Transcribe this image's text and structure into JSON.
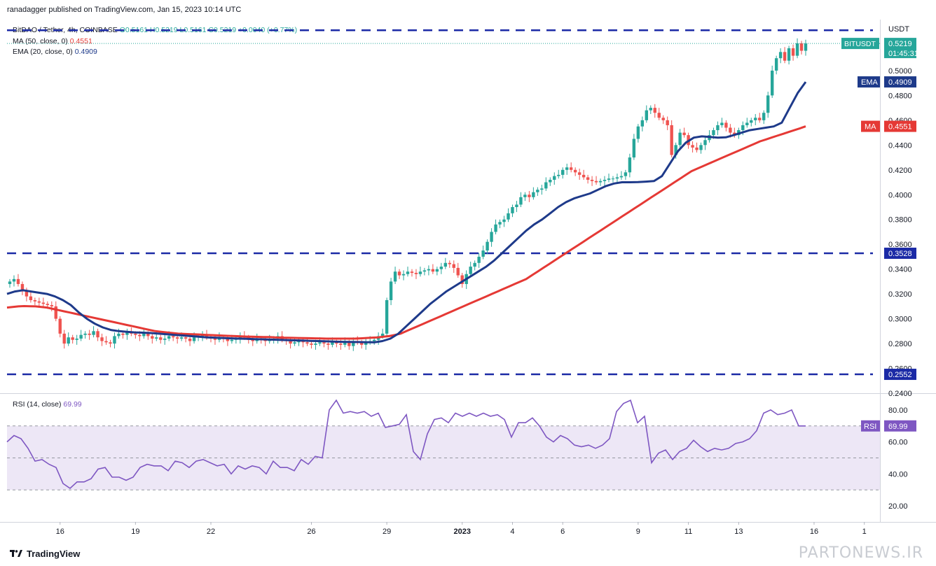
{
  "header": {
    "publisher": "ranadagger published on TradingView.com, Jan 15, 2023 10:14 UTC"
  },
  "legend": {
    "symbol": "BitDAO / Tether, 4h, COINBASE",
    "ohlc": "O0.5161 H0.5219 L0.5161 C0.5219 +0.0040 (+0.77%)",
    "ma_label": "MA (50, close, 0)",
    "ma_value": "0.4551",
    "ema_label": "EMA (20, close, 0)",
    "ema_value": "0.4909"
  },
  "rsi_legend": {
    "label": "RSI (14, close)",
    "value": "69.99"
  },
  "footer": {
    "brand": "TradingView"
  },
  "watermark": "PARTONEWS.IR",
  "colors": {
    "up": "#26a69a",
    "down": "#ef5350",
    "ma": "#e53935",
    "ema": "#1e3a8a",
    "rsi": "#7e57c2",
    "dashed_level": "#1b2aa6",
    "rsi_band": "#ede7f6"
  },
  "chart_data": [
    {
      "type": "candlestick",
      "title": "BitDAO / Tether, 4h, COINBASE",
      "ylabel": "USDT",
      "ylim": [
        0.24,
        0.54
      ],
      "y_ticks": [
        "0.5000",
        "0.4800",
        "0.4600",
        "0.4400",
        "0.4200",
        "0.4000",
        "0.3800",
        "0.3600",
        "0.3400",
        "0.3200",
        "0.3000",
        "0.2800",
        "0.2600",
        "0.2400"
      ],
      "x_ticks": [
        {
          "label": "16",
          "i": 12
        },
        {
          "label": "19",
          "i": 30
        },
        {
          "label": "22",
          "i": 48
        },
        {
          "label": "26",
          "i": 72
        },
        {
          "label": "29",
          "i": 90
        },
        {
          "label": "2023",
          "i": 108
        },
        {
          "label": "4",
          "i": 120
        },
        {
          "label": "6",
          "i": 132
        },
        {
          "label": "9",
          "i": 150
        },
        {
          "label": "11",
          "i": 162
        },
        {
          "label": "13",
          "i": 174
        },
        {
          "label": "16",
          "i": 192
        },
        {
          "label": "1",
          "i": 204
        }
      ],
      "levels": [
        {
          "value": 0.5325,
          "label": ""
        },
        {
          "value": 0.3528,
          "label": "0.3528"
        },
        {
          "value": 0.2552,
          "label": "0.2552"
        }
      ],
      "price_tag": {
        "label": "BITUSDT",
        "value": "0.5219",
        "countdown": "01:45:31"
      },
      "ema_tag": {
        "label": "EMA",
        "value": "0.4909"
      },
      "ma_tag": {
        "label": "MA",
        "value": "0.4551"
      },
      "close": [
        0.33,
        0.332,
        0.328,
        0.322,
        0.318,
        0.315,
        0.314,
        0.313,
        0.312,
        0.311,
        0.31,
        0.3,
        0.288,
        0.28,
        0.285,
        0.283,
        0.284,
        0.287,
        0.288,
        0.287,
        0.29,
        0.285,
        0.282,
        0.281,
        0.28,
        0.286,
        0.288,
        0.287,
        0.289,
        0.288,
        0.287,
        0.286,
        0.288,
        0.286,
        0.284,
        0.285,
        0.283,
        0.284,
        0.286,
        0.285,
        0.284,
        0.285,
        0.284,
        0.282,
        0.285,
        0.286,
        0.287,
        0.285,
        0.284,
        0.283,
        0.285,
        0.284,
        0.282,
        0.283,
        0.284,
        0.286,
        0.285,
        0.283,
        0.282,
        0.284,
        0.283,
        0.282,
        0.283,
        0.284,
        0.286,
        0.283,
        0.282,
        0.28,
        0.281,
        0.282,
        0.281,
        0.28,
        0.279,
        0.28,
        0.281,
        0.28,
        0.279,
        0.281,
        0.28,
        0.279,
        0.281,
        0.278,
        0.282,
        0.281,
        0.279,
        0.281,
        0.282,
        0.283,
        0.286,
        0.288,
        0.315,
        0.33,
        0.338,
        0.335,
        0.336,
        0.338,
        0.337,
        0.336,
        0.338,
        0.339,
        0.34,
        0.338,
        0.34,
        0.342,
        0.345,
        0.344,
        0.341,
        0.335,
        0.328,
        0.336,
        0.342,
        0.345,
        0.35,
        0.355,
        0.362,
        0.37,
        0.376,
        0.378,
        0.38,
        0.385,
        0.39,
        0.392,
        0.398,
        0.4,
        0.398,
        0.402,
        0.404,
        0.405,
        0.41,
        0.412,
        0.415,
        0.416,
        0.42,
        0.422,
        0.42,
        0.418,
        0.416,
        0.414,
        0.412,
        0.411,
        0.41,
        0.411,
        0.412,
        0.413,
        0.413,
        0.414,
        0.415,
        0.418,
        0.43,
        0.445,
        0.455,
        0.46,
        0.468,
        0.47,
        0.466,
        0.462,
        0.46,
        0.456,
        0.432,
        0.44,
        0.45,
        0.448,
        0.44,
        0.438,
        0.436,
        0.44,
        0.444,
        0.448,
        0.452,
        0.456,
        0.458,
        0.454,
        0.45,
        0.448,
        0.452,
        0.456,
        0.458,
        0.46,
        0.462,
        0.46,
        0.466,
        0.48,
        0.5,
        0.51,
        0.515,
        0.508,
        0.518,
        0.512,
        0.522,
        0.516,
        0.5219
      ],
      "ma_50": [
        0.309,
        0.3095,
        0.31,
        0.3102,
        0.3101,
        0.31,
        0.3095,
        0.309,
        0.308,
        0.307,
        0.306,
        0.305,
        0.304,
        0.303,
        0.302,
        0.301,
        0.3,
        0.299,
        0.298,
        0.297,
        0.296,
        0.295,
        0.294,
        0.293,
        0.292,
        0.291,
        0.29,
        0.2895,
        0.289,
        0.2885,
        0.288,
        0.2878,
        0.2876,
        0.2874,
        0.2872,
        0.287,
        0.2868,
        0.2866,
        0.2864,
        0.2862,
        0.286,
        0.2858,
        0.2856,
        0.2855,
        0.2854,
        0.2853,
        0.2852,
        0.285,
        0.2848,
        0.2847,
        0.2846,
        0.2845,
        0.2844,
        0.2843,
        0.2842,
        0.2841,
        0.284,
        0.284,
        0.284,
        0.284,
        0.284,
        0.284,
        0.2842,
        0.2845,
        0.2848,
        0.285,
        0.2855,
        0.286,
        0.287,
        0.288,
        0.29,
        0.292,
        0.294,
        0.296,
        0.298,
        0.3,
        0.302,
        0.304,
        0.306,
        0.308,
        0.31,
        0.312,
        0.314,
        0.316,
        0.318,
        0.32,
        0.322,
        0.324,
        0.326,
        0.328,
        0.33,
        0.332,
        0.335,
        0.338,
        0.341,
        0.344,
        0.347,
        0.35,
        0.353,
        0.356,
        0.359,
        0.362,
        0.365,
        0.368,
        0.371,
        0.374,
        0.377,
        0.38,
        0.383,
        0.386,
        0.389,
        0.392,
        0.395,
        0.398,
        0.401,
        0.404,
        0.407,
        0.41,
        0.413,
        0.416,
        0.419,
        0.421,
        0.423,
        0.425,
        0.427,
        0.429,
        0.431,
        0.433,
        0.435,
        0.437,
        0.439,
        0.441,
        0.443,
        0.4445,
        0.446,
        0.4475,
        0.449,
        0.4505,
        0.452,
        0.4535,
        0.4551
      ],
      "ema_20": [
        0.32,
        0.322,
        0.323,
        0.322,
        0.321,
        0.32,
        0.318,
        0.315,
        0.311,
        0.305,
        0.3,
        0.296,
        0.293,
        0.291,
        0.29,
        0.2895,
        0.289,
        0.2888,
        0.2885,
        0.288,
        0.2875,
        0.287,
        0.2865,
        0.286,
        0.2855,
        0.285,
        0.2848,
        0.2845,
        0.2842,
        0.284,
        0.2838,
        0.2836,
        0.2834,
        0.2832,
        0.283,
        0.2828,
        0.2826,
        0.2824,
        0.2822,
        0.282,
        0.2818,
        0.2816,
        0.2814,
        0.2813,
        0.2812,
        0.2811,
        0.281,
        0.282,
        0.284,
        0.288,
        0.294,
        0.3,
        0.306,
        0.312,
        0.317,
        0.322,
        0.326,
        0.33,
        0.334,
        0.338,
        0.342,
        0.347,
        0.353,
        0.359,
        0.365,
        0.371,
        0.376,
        0.38,
        0.385,
        0.39,
        0.394,
        0.397,
        0.399,
        0.401,
        0.404,
        0.407,
        0.409,
        0.41,
        0.41,
        0.4102,
        0.4105,
        0.411,
        0.415,
        0.425,
        0.435,
        0.442,
        0.446,
        0.447,
        0.4465,
        0.446,
        0.4462,
        0.448,
        0.45,
        0.452,
        0.453,
        0.454,
        0.455,
        0.458,
        0.47,
        0.482,
        0.4909
      ]
    },
    {
      "type": "line",
      "title": "RSI (14, close)",
      "ylim": [
        10,
        90
      ],
      "y_ticks": [
        "80.00",
        "60.00",
        "40.00",
        "20.00"
      ],
      "bands": [
        70,
        50,
        30
      ],
      "value_tag": "69.99",
      "values": [
        60,
        64,
        62,
        56,
        48,
        49,
        46,
        44,
        34,
        31,
        35,
        35,
        37,
        43,
        44,
        38,
        38,
        36,
        38,
        44,
        46,
        45,
        45,
        42,
        48,
        47,
        44,
        48,
        49,
        47,
        45,
        46,
        40,
        45,
        43,
        45,
        44,
        40,
        48,
        44,
        44,
        42,
        49,
        46,
        51,
        50,
        80,
        86,
        78,
        79,
        78,
        79,
        76,
        78,
        69,
        70,
        71,
        77,
        54,
        49,
        65,
        74,
        75,
        72,
        78,
        76,
        78,
        76,
        78,
        76,
        77,
        74,
        63,
        72,
        72,
        75,
        70,
        63,
        60,
        64,
        62,
        58,
        57,
        58,
        56,
        58,
        62,
        79,
        84,
        86,
        72,
        76,
        47,
        53,
        55,
        49,
        54,
        56,
        61,
        57,
        54,
        56,
        55,
        56,
        59,
        60,
        62,
        67,
        78,
        80,
        77,
        78,
        80,
        70,
        69.99
      ]
    }
  ]
}
